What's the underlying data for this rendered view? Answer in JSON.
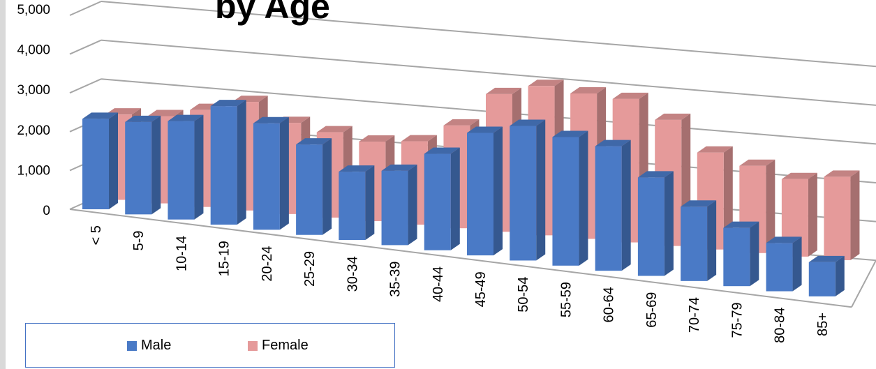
{
  "chart_data": {
    "type": "bar",
    "title": "",
    "visible_title_fragment": "by Age",
    "categories": [
      "< 5",
      "5-9",
      "10-14",
      "15-19",
      "20-24",
      "25-29",
      "30-34",
      "35-39",
      "40-44",
      "45-49",
      "50-54",
      "55-59",
      "60-64",
      "65-69",
      "70-74",
      "75-79",
      "80-84",
      "85+"
    ],
    "series": [
      {
        "name": "Male",
        "color": "#4a7ac6",
        "values": [
          2250,
          2300,
          2450,
          2950,
          2650,
          2250,
          1700,
          1850,
          2400,
          3050,
          3350,
          3200,
          3100,
          2450,
          1850,
          1450,
          1200,
          850
        ]
      },
      {
        "name": "Female",
        "color": "#e59a9a",
        "values": [
          2200,
          2250,
          2500,
          2800,
          2350,
          2200,
          2050,
          2150,
          2650,
          3550,
          3850,
          3750,
          3700,
          3250,
          2500,
          2250,
          2000,
          2150
        ]
      }
    ],
    "y_ticks": [
      "0",
      "1,000",
      "2,000",
      "3,000",
      "4,000",
      "5,000"
    ],
    "ylim": [
      0,
      5000
    ],
    "grid": true,
    "legend_position": "bottom-left",
    "style": "3d-clustered-column"
  }
}
